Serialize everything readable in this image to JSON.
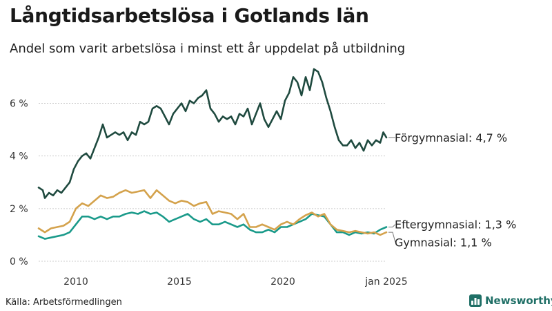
{
  "header": {
    "title": "Långtidsarbetslösa i Gotlands län",
    "subtitle": "Andel som varit arbetslösa i minst ett år uppdelat på utbildning"
  },
  "footer": {
    "source": "Källa: Arbetsförmedlingen",
    "brand": "Newsworthy"
  },
  "colors": {
    "forgymnasial": "#1f4a3f",
    "eftergymnasial": "#1a9a8a",
    "gymnasial": "#d4a24c",
    "grid": "#cccccc",
    "text": "#333333"
  },
  "chart_data": {
    "type": "line",
    "title": "Långtidsarbetslösa i Gotlands län",
    "subtitle": "Andel som varit arbetslösa i minst ett år uppdelat på utbildning",
    "xlabel": "",
    "ylabel": "",
    "x_unit": "year",
    "xlim": [
      2008.2,
      2025.0
    ],
    "ylim": [
      0,
      7.3
    ],
    "grid": true,
    "y_ticks": [
      0,
      2,
      4,
      6
    ],
    "y_tick_labels": [
      "0 %",
      "2 %",
      "4 %",
      "6 %"
    ],
    "x_ticks": [
      2010,
      2015,
      2020,
      2025
    ],
    "x_tick_labels": [
      "2010",
      "2015",
      "2020",
      "jan 2025"
    ],
    "series": [
      {
        "name": "Förgymnasial",
        "label": "Förgymnasial: 4,7 %",
        "color_key": "forgymnasial",
        "points": [
          [
            2008.2,
            2.8
          ],
          [
            2008.4,
            2.7
          ],
          [
            2008.5,
            2.4
          ],
          [
            2008.7,
            2.6
          ],
          [
            2008.9,
            2.5
          ],
          [
            2009.1,
            2.7
          ],
          [
            2009.3,
            2.6
          ],
          [
            2009.5,
            2.8
          ],
          [
            2009.7,
            3.0
          ],
          [
            2009.9,
            3.5
          ],
          [
            2010.1,
            3.8
          ],
          [
            2010.3,
            4.0
          ],
          [
            2010.5,
            4.1
          ],
          [
            2010.7,
            3.9
          ],
          [
            2010.9,
            4.3
          ],
          [
            2011.1,
            4.7
          ],
          [
            2011.3,
            5.2
          ],
          [
            2011.5,
            4.7
          ],
          [
            2011.7,
            4.8
          ],
          [
            2011.9,
            4.9
          ],
          [
            2012.1,
            4.8
          ],
          [
            2012.3,
            4.9
          ],
          [
            2012.5,
            4.6
          ],
          [
            2012.7,
            4.9
          ],
          [
            2012.9,
            4.8
          ],
          [
            2013.1,
            5.3
          ],
          [
            2013.3,
            5.2
          ],
          [
            2013.5,
            5.3
          ],
          [
            2013.7,
            5.8
          ],
          [
            2013.9,
            5.9
          ],
          [
            2014.1,
            5.8
          ],
          [
            2014.3,
            5.5
          ],
          [
            2014.5,
            5.2
          ],
          [
            2014.7,
            5.6
          ],
          [
            2014.9,
            5.8
          ],
          [
            2015.1,
            6.0
          ],
          [
            2015.3,
            5.7
          ],
          [
            2015.5,
            6.1
          ],
          [
            2015.7,
            6.0
          ],
          [
            2015.9,
            6.2
          ],
          [
            2016.1,
            6.3
          ],
          [
            2016.3,
            6.5
          ],
          [
            2016.5,
            5.8
          ],
          [
            2016.7,
            5.6
          ],
          [
            2016.9,
            5.3
          ],
          [
            2017.1,
            5.5
          ],
          [
            2017.3,
            5.4
          ],
          [
            2017.5,
            5.5
          ],
          [
            2017.7,
            5.2
          ],
          [
            2017.9,
            5.6
          ],
          [
            2018.1,
            5.5
          ],
          [
            2018.3,
            5.8
          ],
          [
            2018.5,
            5.2
          ],
          [
            2018.7,
            5.6
          ],
          [
            2018.9,
            6.0
          ],
          [
            2019.1,
            5.4
          ],
          [
            2019.3,
            5.1
          ],
          [
            2019.5,
            5.4
          ],
          [
            2019.7,
            5.7
          ],
          [
            2019.9,
            5.4
          ],
          [
            2020.1,
            6.1
          ],
          [
            2020.3,
            6.4
          ],
          [
            2020.5,
            7.0
          ],
          [
            2020.7,
            6.8
          ],
          [
            2020.9,
            6.3
          ],
          [
            2021.1,
            7.0
          ],
          [
            2021.3,
            6.5
          ],
          [
            2021.5,
            7.3
          ],
          [
            2021.7,
            7.2
          ],
          [
            2021.9,
            6.8
          ],
          [
            2022.1,
            6.2
          ],
          [
            2022.3,
            5.7
          ],
          [
            2022.5,
            5.1
          ],
          [
            2022.7,
            4.6
          ],
          [
            2022.9,
            4.4
          ],
          [
            2023.1,
            4.4
          ],
          [
            2023.3,
            4.6
          ],
          [
            2023.5,
            4.3
          ],
          [
            2023.7,
            4.5
          ],
          [
            2023.9,
            4.2
          ],
          [
            2024.1,
            4.6
          ],
          [
            2024.3,
            4.4
          ],
          [
            2024.5,
            4.6
          ],
          [
            2024.7,
            4.5
          ],
          [
            2024.85,
            4.9
          ],
          [
            2025.0,
            4.7
          ]
        ]
      },
      {
        "name": "Eftergymnasial",
        "label": "Eftergymnasial: 1,3 %",
        "color_key": "eftergymnasial",
        "points": [
          [
            2008.2,
            0.95
          ],
          [
            2008.5,
            0.85
          ],
          [
            2008.8,
            0.9
          ],
          [
            2009.1,
            0.95
          ],
          [
            2009.4,
            1.0
          ],
          [
            2009.7,
            1.1
          ],
          [
            2010.0,
            1.4
          ],
          [
            2010.3,
            1.7
          ],
          [
            2010.6,
            1.7
          ],
          [
            2010.9,
            1.6
          ],
          [
            2011.2,
            1.7
          ],
          [
            2011.5,
            1.6
          ],
          [
            2011.8,
            1.7
          ],
          [
            2012.1,
            1.7
          ],
          [
            2012.4,
            1.8
          ],
          [
            2012.7,
            1.85
          ],
          [
            2013.0,
            1.8
          ],
          [
            2013.3,
            1.9
          ],
          [
            2013.6,
            1.8
          ],
          [
            2013.9,
            1.85
          ],
          [
            2014.2,
            1.7
          ],
          [
            2014.5,
            1.5
          ],
          [
            2014.8,
            1.6
          ],
          [
            2015.1,
            1.7
          ],
          [
            2015.4,
            1.8
          ],
          [
            2015.7,
            1.6
          ],
          [
            2016.0,
            1.5
          ],
          [
            2016.3,
            1.6
          ],
          [
            2016.6,
            1.4
          ],
          [
            2016.9,
            1.4
          ],
          [
            2017.2,
            1.5
          ],
          [
            2017.5,
            1.4
          ],
          [
            2017.8,
            1.3
          ],
          [
            2018.1,
            1.4
          ],
          [
            2018.4,
            1.2
          ],
          [
            2018.7,
            1.1
          ],
          [
            2019.0,
            1.1
          ],
          [
            2019.3,
            1.2
          ],
          [
            2019.6,
            1.1
          ],
          [
            2019.9,
            1.3
          ],
          [
            2020.2,
            1.3
          ],
          [
            2020.5,
            1.4
          ],
          [
            2020.8,
            1.5
          ],
          [
            2021.1,
            1.6
          ],
          [
            2021.4,
            1.8
          ],
          [
            2021.7,
            1.75
          ],
          [
            2022.0,
            1.7
          ],
          [
            2022.3,
            1.4
          ],
          [
            2022.6,
            1.1
          ],
          [
            2022.9,
            1.1
          ],
          [
            2023.2,
            1.0
          ],
          [
            2023.5,
            1.1
          ],
          [
            2023.8,
            1.05
          ],
          [
            2024.1,
            1.1
          ],
          [
            2024.4,
            1.05
          ],
          [
            2024.7,
            1.2
          ],
          [
            2025.0,
            1.3
          ]
        ]
      },
      {
        "name": "Gymnasial",
        "label": "Gymnasial: 1,1 %",
        "color_key": "gymnasial",
        "points": [
          [
            2008.2,
            1.25
          ],
          [
            2008.5,
            1.1
          ],
          [
            2008.8,
            1.25
          ],
          [
            2009.1,
            1.3
          ],
          [
            2009.4,
            1.35
          ],
          [
            2009.7,
            1.5
          ],
          [
            2010.0,
            2.0
          ],
          [
            2010.3,
            2.2
          ],
          [
            2010.6,
            2.1
          ],
          [
            2010.9,
            2.3
          ],
          [
            2011.2,
            2.5
          ],
          [
            2011.5,
            2.4
          ],
          [
            2011.8,
            2.45
          ],
          [
            2012.1,
            2.6
          ],
          [
            2012.4,
            2.7
          ],
          [
            2012.7,
            2.6
          ],
          [
            2013.0,
            2.65
          ],
          [
            2013.3,
            2.7
          ],
          [
            2013.6,
            2.4
          ],
          [
            2013.9,
            2.7
          ],
          [
            2014.2,
            2.5
          ],
          [
            2014.5,
            2.3
          ],
          [
            2014.8,
            2.2
          ],
          [
            2015.1,
            2.3
          ],
          [
            2015.4,
            2.25
          ],
          [
            2015.7,
            2.1
          ],
          [
            2016.0,
            2.2
          ],
          [
            2016.3,
            2.25
          ],
          [
            2016.6,
            1.8
          ],
          [
            2016.9,
            1.9
          ],
          [
            2017.2,
            1.85
          ],
          [
            2017.5,
            1.8
          ],
          [
            2017.8,
            1.6
          ],
          [
            2018.1,
            1.8
          ],
          [
            2018.4,
            1.3
          ],
          [
            2018.7,
            1.3
          ],
          [
            2019.0,
            1.4
          ],
          [
            2019.3,
            1.3
          ],
          [
            2019.6,
            1.2
          ],
          [
            2019.9,
            1.4
          ],
          [
            2020.2,
            1.5
          ],
          [
            2020.5,
            1.4
          ],
          [
            2020.8,
            1.6
          ],
          [
            2021.1,
            1.75
          ],
          [
            2021.4,
            1.85
          ],
          [
            2021.7,
            1.7
          ],
          [
            2022.0,
            1.8
          ],
          [
            2022.3,
            1.4
          ],
          [
            2022.6,
            1.2
          ],
          [
            2022.9,
            1.15
          ],
          [
            2023.2,
            1.1
          ],
          [
            2023.5,
            1.15
          ],
          [
            2023.8,
            1.1
          ],
          [
            2024.1,
            1.05
          ],
          [
            2024.4,
            1.1
          ],
          [
            2024.7,
            1.0
          ],
          [
            2025.0,
            1.1
          ]
        ]
      }
    ]
  }
}
